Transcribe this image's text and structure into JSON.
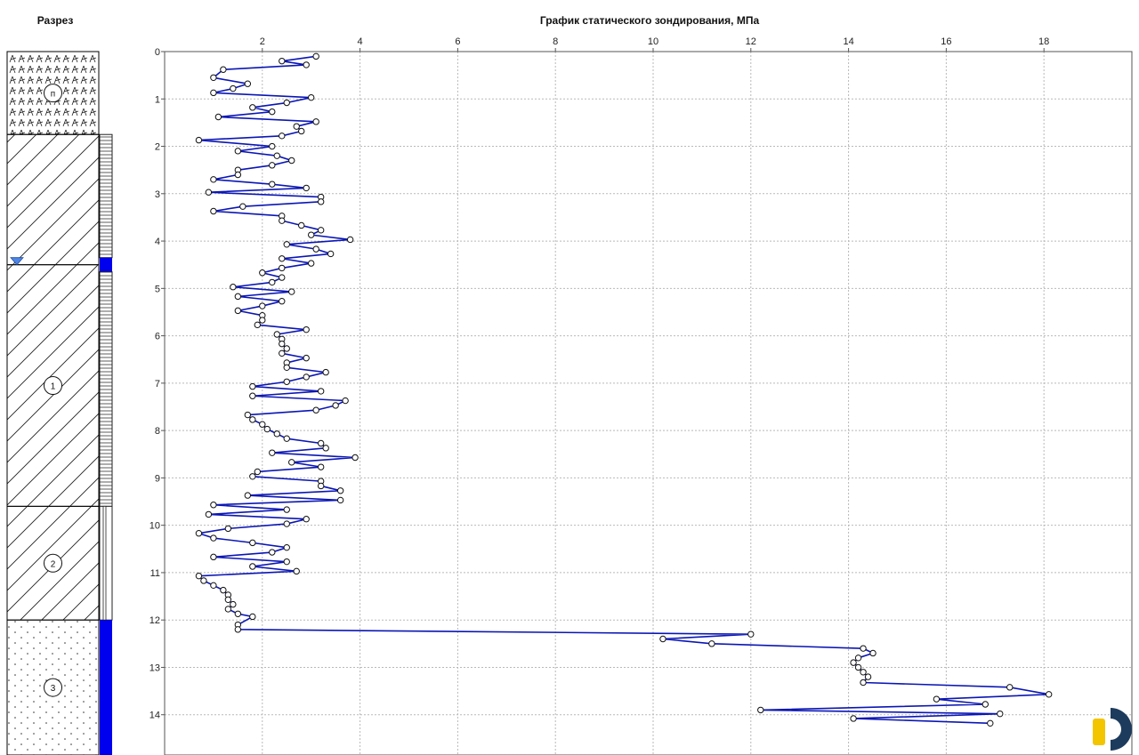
{
  "section": {
    "title": "Разрез",
    "layers": [
      {
        "label": "п",
        "top": 0,
        "bottom": 1.75,
        "pattern": "fill"
      },
      {
        "label": "",
        "top": 1.75,
        "bottom": 4.5,
        "pattern": "hatch"
      },
      {
        "label": "1",
        "top": 4.5,
        "bottom": 9.6,
        "pattern": "hatch"
      },
      {
        "label": "2",
        "top": 9.6,
        "bottom": 12.0,
        "pattern": "hatch"
      },
      {
        "label": "3",
        "top": 12.0,
        "bottom": 14.85,
        "pattern": "sand"
      }
    ],
    "water_level": 4.35,
    "colors": {
      "water": "#4f86e6",
      "saturated": "#0000ee",
      "line": "#000000"
    }
  },
  "chart_data": {
    "type": "line",
    "title": "График статического зондирования, МПа",
    "xlabel": "",
    "ylabel": "",
    "xlim": [
      0,
      19.8
    ],
    "ylim": [
      0,
      14.85
    ],
    "x_ticks": [
      2,
      4,
      6,
      8,
      10,
      12,
      14,
      16,
      18
    ],
    "y_ticks": [
      0,
      1,
      2,
      3,
      4,
      5,
      6,
      7,
      8,
      9,
      10,
      11,
      12,
      13,
      14
    ],
    "grid": true,
    "legend": "none",
    "line_color": "#0b16b4",
    "series": [
      {
        "points": [
          [
            3.1,
            0.1
          ],
          [
            2.4,
            0.2
          ],
          [
            2.9,
            0.28
          ],
          [
            1.2,
            0.38
          ],
          [
            1.0,
            0.55
          ],
          [
            1.7,
            0.68
          ],
          [
            1.4,
            0.78
          ],
          [
            1.0,
            0.87
          ],
          [
            3.0,
            0.97
          ],
          [
            2.5,
            1.08
          ],
          [
            1.8,
            1.18
          ],
          [
            2.2,
            1.27
          ],
          [
            1.1,
            1.38
          ],
          [
            3.1,
            1.48
          ],
          [
            2.7,
            1.58
          ],
          [
            2.8,
            1.68
          ],
          [
            2.4,
            1.78
          ],
          [
            0.7,
            1.87
          ],
          [
            2.2,
            2.0
          ],
          [
            1.5,
            2.1
          ],
          [
            2.3,
            2.2
          ],
          [
            2.6,
            2.3
          ],
          [
            2.2,
            2.4
          ],
          [
            1.5,
            2.5
          ],
          [
            1.5,
            2.6
          ],
          [
            1.0,
            2.7
          ],
          [
            2.2,
            2.8
          ],
          [
            2.9,
            2.88
          ],
          [
            0.9,
            2.97
          ],
          [
            3.2,
            3.07
          ],
          [
            3.2,
            3.17
          ],
          [
            1.6,
            3.27
          ],
          [
            1.0,
            3.37
          ],
          [
            2.4,
            3.47
          ],
          [
            2.4,
            3.57
          ],
          [
            2.8,
            3.67
          ],
          [
            3.2,
            3.77
          ],
          [
            3.0,
            3.87
          ],
          [
            3.8,
            3.97
          ],
          [
            2.5,
            4.07
          ],
          [
            3.1,
            4.17
          ],
          [
            3.4,
            4.27
          ],
          [
            2.4,
            4.37
          ],
          [
            3.0,
            4.47
          ],
          [
            2.4,
            4.57
          ],
          [
            2.0,
            4.67
          ],
          [
            2.4,
            4.77
          ],
          [
            2.2,
            4.87
          ],
          [
            1.4,
            4.97
          ],
          [
            2.6,
            5.07
          ],
          [
            1.5,
            5.17
          ],
          [
            2.4,
            5.27
          ],
          [
            2.0,
            5.37
          ],
          [
            1.5,
            5.47
          ],
          [
            2.0,
            5.57
          ],
          [
            2.0,
            5.67
          ],
          [
            1.9,
            5.77
          ],
          [
            2.9,
            5.87
          ],
          [
            2.3,
            5.97
          ],
          [
            2.4,
            6.07
          ],
          [
            2.4,
            6.17
          ],
          [
            2.5,
            6.27
          ],
          [
            2.4,
            6.37
          ],
          [
            2.9,
            6.47
          ],
          [
            2.5,
            6.57
          ],
          [
            2.5,
            6.67
          ],
          [
            3.3,
            6.77
          ],
          [
            2.9,
            6.87
          ],
          [
            2.5,
            6.97
          ],
          [
            1.8,
            7.07
          ],
          [
            3.2,
            7.17
          ],
          [
            1.8,
            7.27
          ],
          [
            3.7,
            7.37
          ],
          [
            3.5,
            7.47
          ],
          [
            3.1,
            7.57
          ],
          [
            1.7,
            7.67
          ],
          [
            1.8,
            7.77
          ],
          [
            2.0,
            7.87
          ],
          [
            2.1,
            7.97
          ],
          [
            2.3,
            8.07
          ],
          [
            2.5,
            8.17
          ],
          [
            3.2,
            8.27
          ],
          [
            3.3,
            8.37
          ],
          [
            2.2,
            8.47
          ],
          [
            3.9,
            8.57
          ],
          [
            2.6,
            8.67
          ],
          [
            3.2,
            8.77
          ],
          [
            1.9,
            8.87
          ],
          [
            1.8,
            8.97
          ],
          [
            3.2,
            9.07
          ],
          [
            3.2,
            9.17
          ],
          [
            3.6,
            9.27
          ],
          [
            1.7,
            9.37
          ],
          [
            3.6,
            9.47
          ],
          [
            1.0,
            9.57
          ],
          [
            2.5,
            9.67
          ],
          [
            0.9,
            9.77
          ],
          [
            2.9,
            9.87
          ],
          [
            2.5,
            9.97
          ],
          [
            1.3,
            10.07
          ],
          [
            0.7,
            10.17
          ],
          [
            1.0,
            10.27
          ],
          [
            1.8,
            10.37
          ],
          [
            2.5,
            10.47
          ],
          [
            2.2,
            10.57
          ],
          [
            1.0,
            10.67
          ],
          [
            2.5,
            10.77
          ],
          [
            1.8,
            10.87
          ],
          [
            2.7,
            10.97
          ],
          [
            0.7,
            11.07
          ],
          [
            0.8,
            11.17
          ],
          [
            1.0,
            11.27
          ],
          [
            1.2,
            11.37
          ],
          [
            1.3,
            11.47
          ],
          [
            1.3,
            11.57
          ],
          [
            1.4,
            11.67
          ],
          [
            1.3,
            11.77
          ],
          [
            1.5,
            11.87
          ],
          [
            1.8,
            11.93
          ],
          [
            1.5,
            12.1
          ],
          [
            1.5,
            12.2
          ],
          [
            12.0,
            12.3
          ],
          [
            10.2,
            12.4
          ],
          [
            11.2,
            12.5
          ],
          [
            14.3,
            12.6
          ],
          [
            14.5,
            12.7
          ],
          [
            14.2,
            12.8
          ],
          [
            14.1,
            12.9
          ],
          [
            14.2,
            13.0
          ],
          [
            14.3,
            13.1
          ],
          [
            14.4,
            13.2
          ],
          [
            14.3,
            13.32
          ],
          [
            17.3,
            13.42
          ],
          [
            18.1,
            13.57
          ],
          [
            15.8,
            13.67
          ],
          [
            16.8,
            13.78
          ],
          [
            12.2,
            13.9
          ],
          [
            17.1,
            13.98
          ],
          [
            14.1,
            14.08
          ],
          [
            16.9,
            14.18
          ]
        ]
      }
    ]
  }
}
